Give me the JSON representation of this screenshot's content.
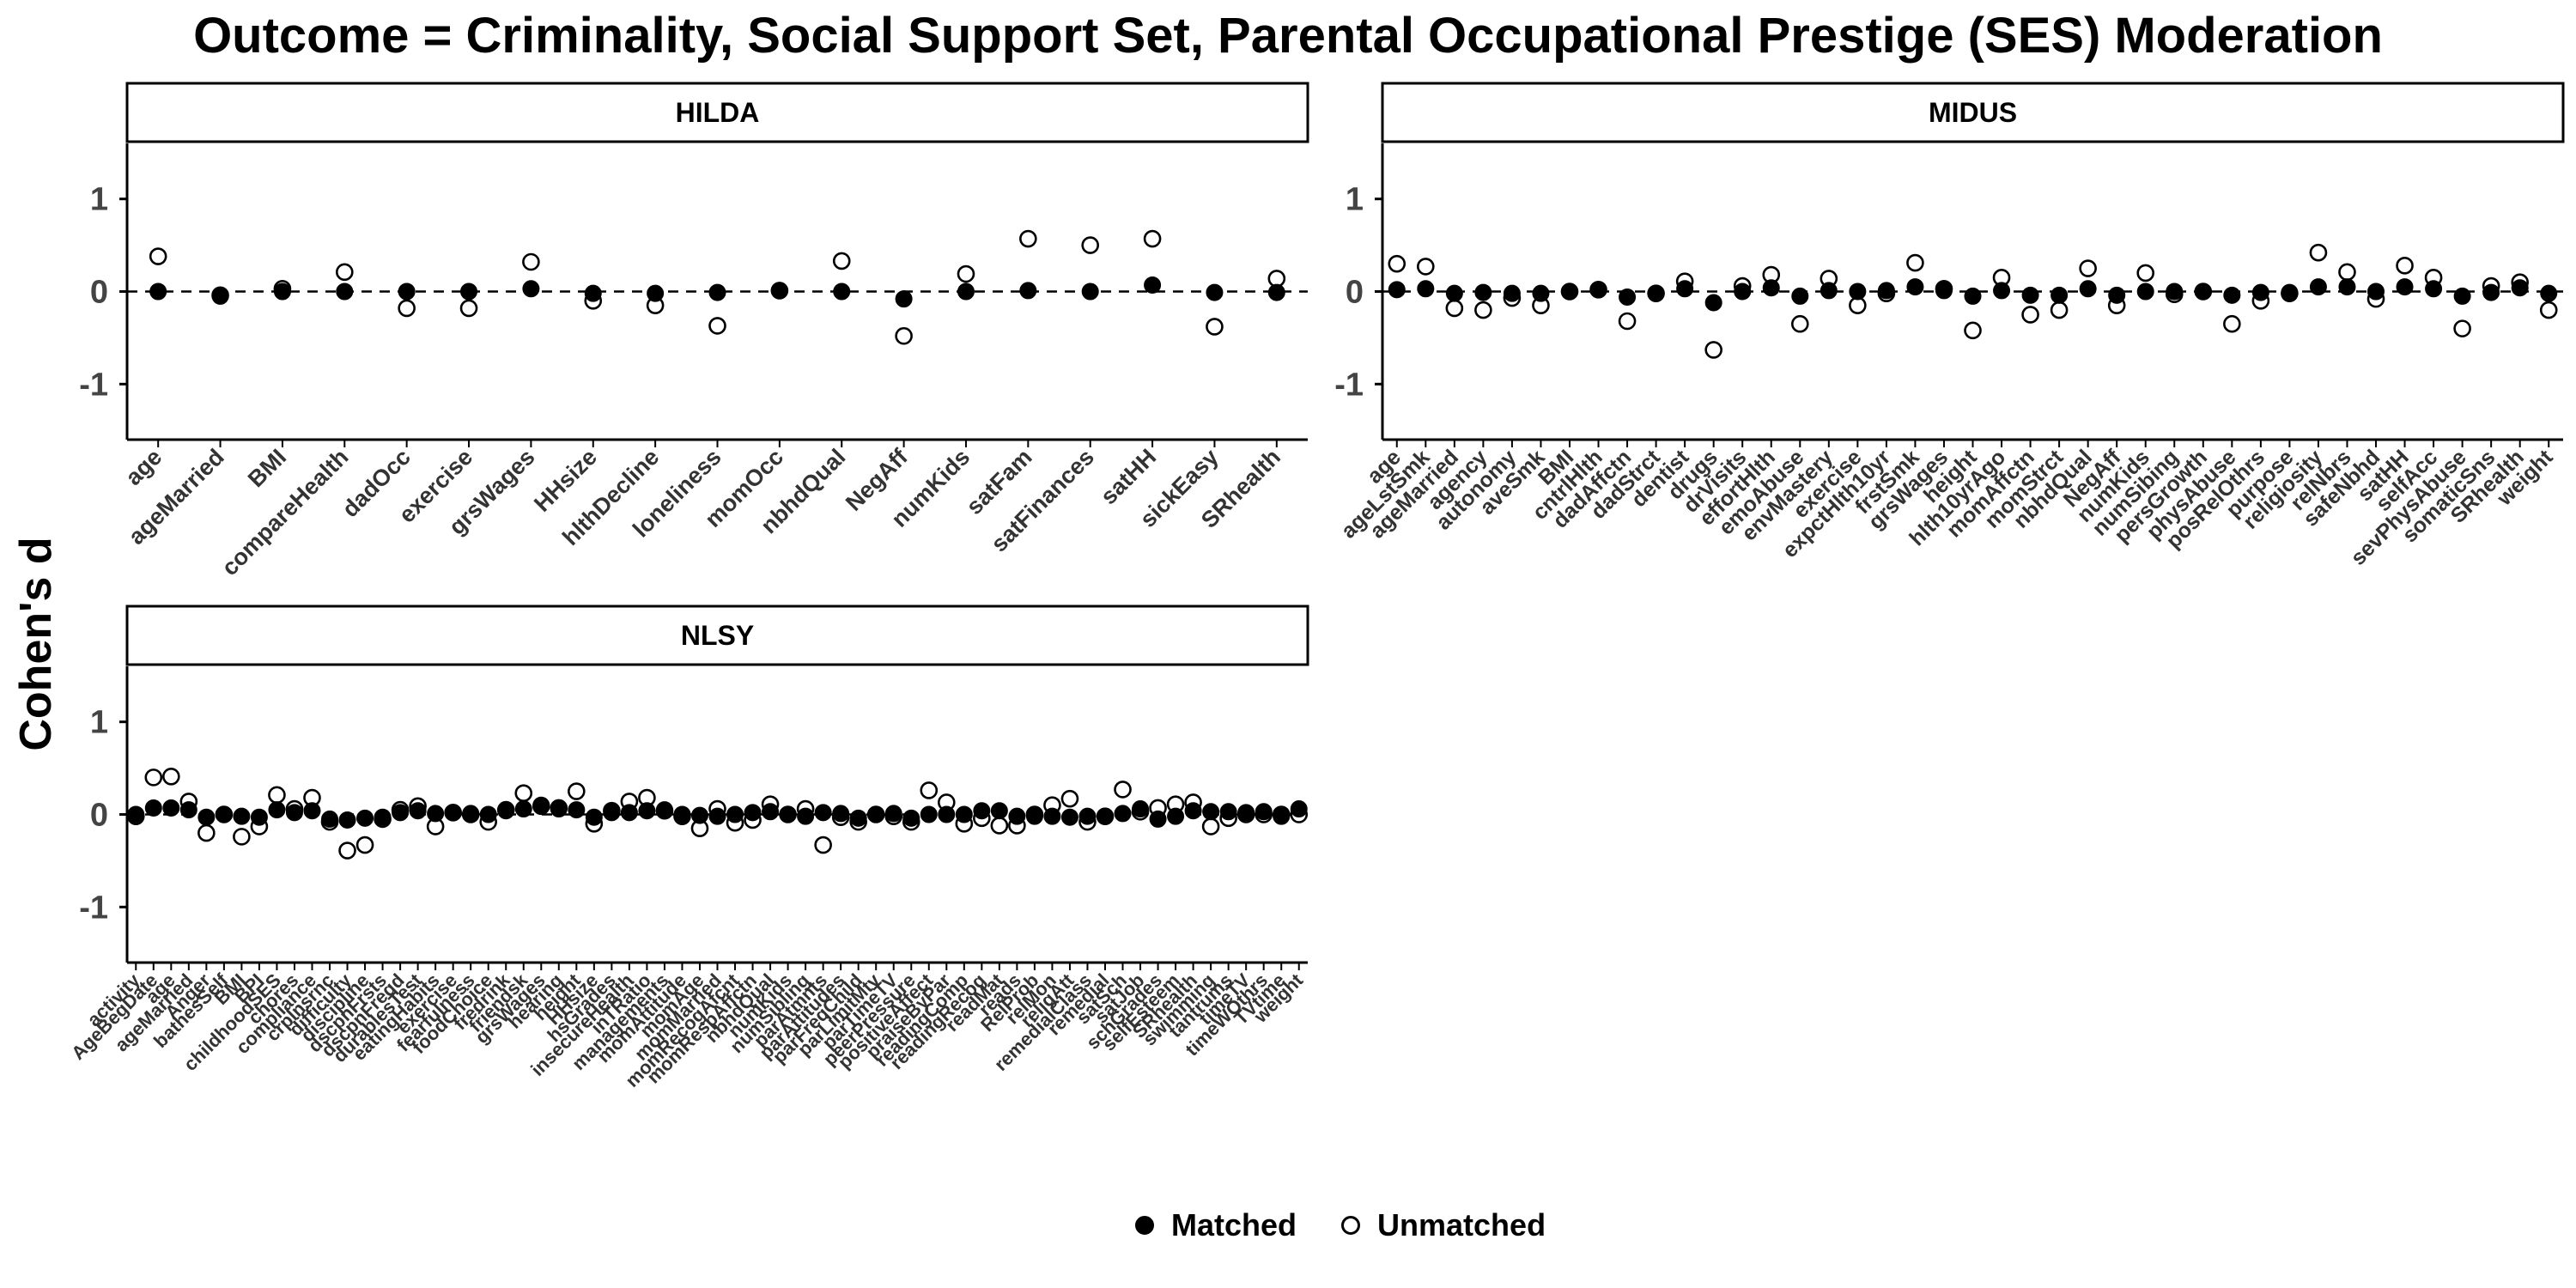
{
  "title": "Outcome = Criminality, Social Support Set, Parental Occupational Prestige (SES) Moderation",
  "chart_data": {
    "type": "scatter",
    "title": "Outcome = Criminality, Social Support Set, Parental Occupational Prestige (SES) Moderation",
    "ylabel": "Cohen's d",
    "xlabel": "",
    "ylim": [
      -1.6,
      1.6
    ],
    "yticks": [
      -1,
      0,
      1
    ],
    "reference_line": 0,
    "legend": {
      "position": "bottom",
      "entries": [
        "Matched",
        "Unmatched"
      ]
    },
    "panels": [
      {
        "name": "HILDA",
        "categories": [
          "age",
          "ageMarried",
          "BMI",
          "compareHealth",
          "dadOcc",
          "exercise",
          "grsWages",
          "HHsize",
          "hlthDecline",
          "loneliness",
          "momOcc",
          "nbhdQual",
          "NegAff",
          "numKids",
          "satFam",
          "satFinances",
          "satHH",
          "sickEasy",
          "SRhealth"
        ],
        "series": [
          {
            "name": "Matched",
            "values": [
              0.0,
              -0.05,
              0.0,
              0.0,
              0.0,
              0.0,
              0.03,
              -0.02,
              -0.02,
              -0.01,
              0.01,
              0.0,
              -0.08,
              0.0,
              0.01,
              0.0,
              0.07,
              -0.01,
              -0.01
            ]
          },
          {
            "name": "Unmatched",
            "values": [
              0.38,
              -0.04,
              0.03,
              0.21,
              -0.18,
              -0.18,
              0.32,
              -0.1,
              -0.15,
              -0.37,
              0.01,
              0.33,
              -0.48,
              0.19,
              0.57,
              0.5,
              0.57,
              -0.38,
              0.14
            ]
          }
        ]
      },
      {
        "name": "MIDUS",
        "categories": [
          "age",
          "ageLstSmk",
          "ageMarried",
          "agency",
          "autonomy",
          "aveSmk",
          "BMI",
          "cntrlHlth",
          "dadAffctn",
          "dadStrct",
          "dentist",
          "drugs",
          "drVisits",
          "effortHlth",
          "emoAbuse",
          "envMastery",
          "exercise",
          "expctHlth10yr",
          "frstSmk",
          "grsWages",
          "height",
          "hlth10yrAgo",
          "momAffctn",
          "momStrct",
          "nbhdQual",
          "NegAff",
          "numKids",
          "numSibing",
          "persGrowth",
          "physAbuse",
          "posRelOthrs",
          "purpose",
          "religiosity",
          "relNbrs",
          "safeNbhd",
          "satHH",
          "selfAcc",
          "sevPhysAbuse",
          "somaticSns",
          "SRhealth",
          "weight"
        ],
        "series": [
          {
            "name": "Matched",
            "values": [
              0.02,
              0.03,
              -0.02,
              -0.01,
              -0.02,
              -0.02,
              0.0,
              0.02,
              -0.06,
              -0.02,
              0.03,
              -0.12,
              0.0,
              0.04,
              -0.05,
              0.01,
              0.0,
              0.01,
              0.05,
              0.01,
              -0.05,
              0.01,
              -0.04,
              -0.04,
              0.03,
              -0.04,
              0.0,
              0.0,
              0.0,
              -0.04,
              -0.01,
              -0.01,
              0.05,
              0.05,
              0.0,
              0.05,
              0.03,
              -0.05,
              -0.01,
              0.04,
              -0.02
            ]
          },
          {
            "name": "Unmatched",
            "values": [
              0.3,
              0.27,
              -0.18,
              -0.2,
              -0.07,
              -0.15,
              0.0,
              0.02,
              -0.32,
              -0.02,
              0.11,
              -0.63,
              0.06,
              0.18,
              -0.35,
              0.14,
              -0.15,
              -0.02,
              0.31,
              0.03,
              -0.42,
              0.15,
              -0.25,
              -0.2,
              0.25,
              -0.15,
              0.2,
              -0.03,
              0.0,
              -0.35,
              -0.1,
              -0.02,
              0.42,
              0.21,
              -0.08,
              0.28,
              0.15,
              -0.4,
              0.06,
              0.1,
              -0.2
            ]
          }
        ]
      },
      {
        "name": "NLSY",
        "categories": [
          "activity",
          "AgeBegDate",
          "age",
          "ageMarried",
          "Anger",
          "bathesSelf",
          "BMI",
          "BPI",
          "childhoodSES",
          "chores",
          "compliance",
          "crplnsrnc",
          "difficulty",
          "discipline",
          "dscpnFrsts",
          "dscpnFreqd",
          "durablesTest",
          "eatingHabits",
          "exercise",
          "fearfulness",
          "foodChoice",
          "fredrink",
          "friendsk",
          "grsWages",
          "hearing",
          "height",
          "HHsize",
          "hsGrades",
          "insecureHealth",
          "inTRatio",
          "managements",
          "momAttitude",
          "momAge",
          "momMarried",
          "momRecogAfcnt",
          "momRespAffctn",
          "nbhdQual",
          "numKids",
          "numSibling",
          "parAtmnts",
          "parAttitudes",
          "parFreqChild",
          "parLimitMtv",
          "parTimeTV",
          "peerPressure",
          "positiveAffect",
          "praiseByPar",
          "readingComp",
          "readingRecog",
          "readMat",
          "reads",
          "RelProb",
          "relMon",
          "religAtt",
          "remedialClass",
          "remedial",
          "satSch",
          "satJob",
          "schGrades",
          "selfEsteem",
          "SRhealth",
          "swimming",
          "tantrums",
          "timeTV",
          "timeWOthrs",
          "TVtime",
          "weight"
        ],
        "series": [
          {
            "name": "Matched",
            "values": [
              0.0,
              0.07,
              0.07,
              0.05,
              -0.03,
              0.0,
              -0.02,
              -0.03,
              0.05,
              0.02,
              0.04,
              -0.05,
              -0.06,
              -0.04,
              -0.03,
              0.02,
              0.04,
              0.01,
              0.02,
              0.01,
              0.0,
              0.04,
              0.06,
              0.1,
              0.06,
              0.05,
              -0.03,
              0.02,
              0.02,
              0.04,
              0.05,
              0.0,
              -0.01,
              -0.02,
              0.0,
              0.02,
              0.03,
              0.0,
              -0.02,
              0.02,
              0.01,
              -0.04,
              0.0,
              0.01,
              -0.04,
              0.0,
              0.0,
              0.0,
              0.04,
              0.04,
              -0.02,
              -0.02,
              -0.02,
              -0.03,
              -0.02,
              -0.02,
              0.01,
              0.06,
              -0.05,
              -0.02,
              0.04,
              0.03,
              0.03,
              0.02,
              0.03,
              -0.02,
              0.06
            ]
          },
          {
            "name": "Unmatched",
            "values": [
              -0.02,
              0.4,
              0.41,
              0.14,
              -0.2,
              0.0,
              -0.24,
              -0.13,
              0.21,
              0.06,
              0.18,
              -0.08,
              -0.39,
              -0.33,
              -0.05,
              0.05,
              0.09,
              -0.13,
              0.02,
              0.0,
              -0.08,
              0.05,
              0.23,
              0.09,
              0.07,
              0.25,
              -0.1,
              0.04,
              0.14,
              0.18,
              0.04,
              -0.02,
              -0.15,
              0.06,
              -0.09,
              -0.06,
              0.11,
              0.0,
              0.06,
              -0.33,
              -0.03,
              -0.08,
              0.0,
              -0.02,
              -0.08,
              0.26,
              0.13,
              -0.1,
              -0.04,
              -0.12,
              -0.12,
              0.0,
              0.1,
              0.17,
              -0.08,
              -0.02,
              0.27,
              0.03,
              0.07,
              0.11,
              0.13,
              -0.13,
              -0.04,
              0.0,
              0.0,
              0.0,
              0.0
            ]
          }
        ]
      }
    ]
  }
}
